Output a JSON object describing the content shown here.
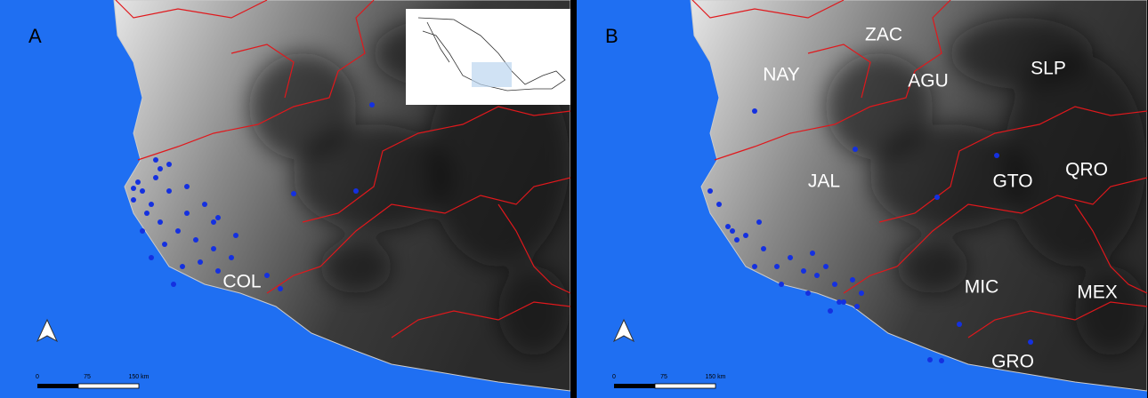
{
  "panels": [
    {
      "label": "A",
      "places": [
        "COL"
      ],
      "scale": [
        "0",
        "75",
        "150 km"
      ]
    },
    {
      "label": "B",
      "places": [
        "NAY",
        "ZAC",
        "AGU",
        "SLP",
        "JAL",
        "GTO",
        "QRO",
        "MIC",
        "MEX",
        "GRO"
      ],
      "scale": [
        "0",
        "75",
        "150 km"
      ]
    }
  ]
}
